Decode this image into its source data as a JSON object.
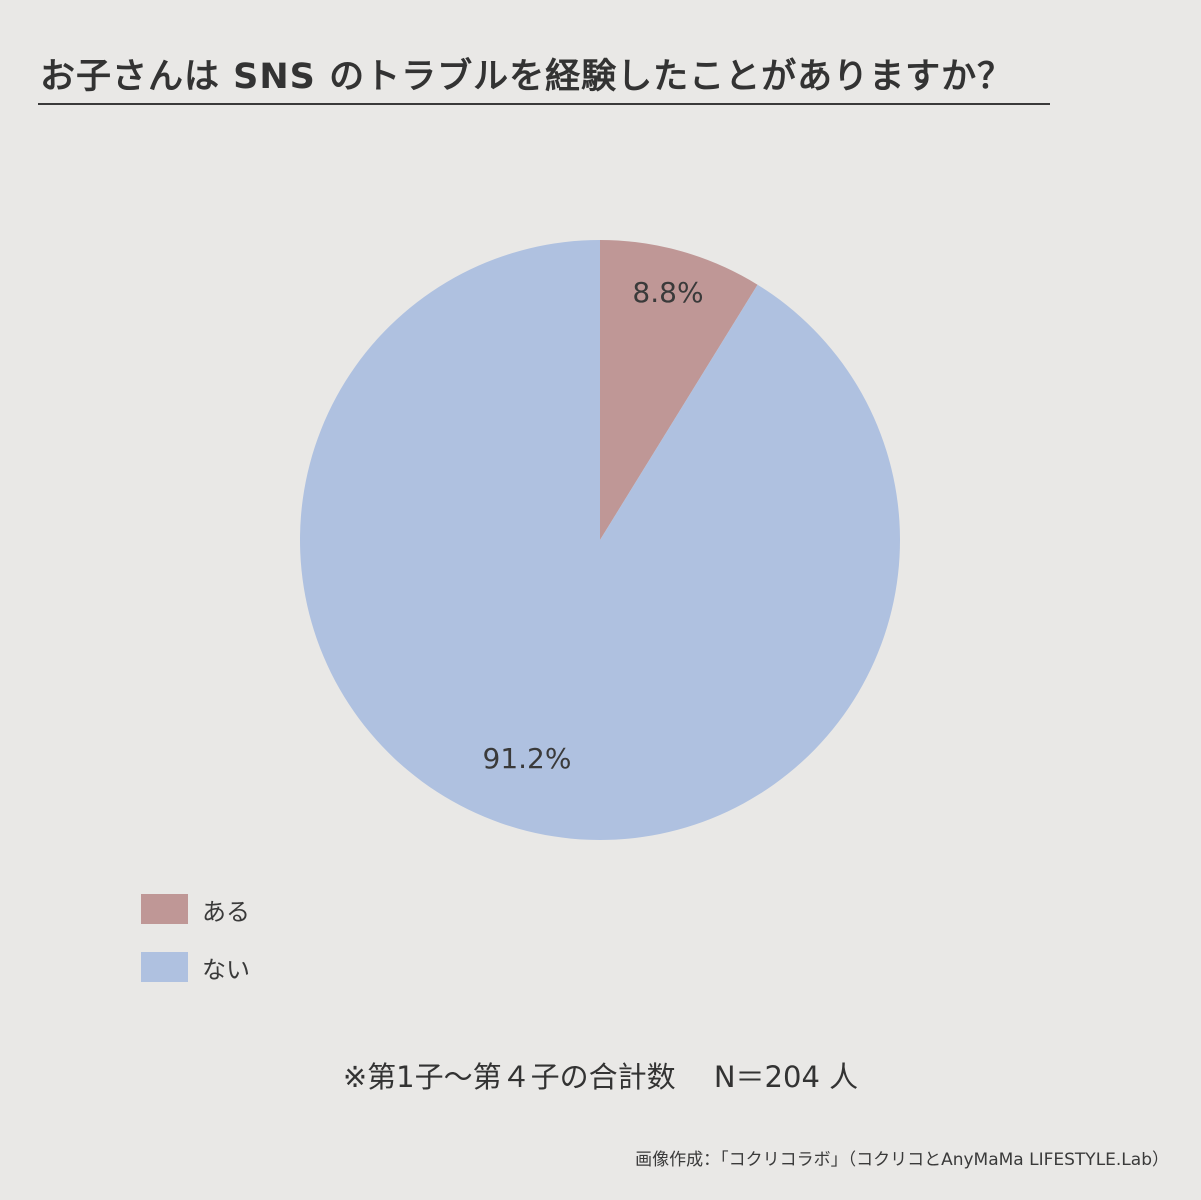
{
  "chart_data": {
    "type": "pie",
    "title": "お子さんは SNS のトラブルを経験したことがありますか？",
    "categories": [
      "ある",
      "ない"
    ],
    "values": [
      8.8,
      91.2
    ],
    "labels": [
      "8.8%",
      "91.2%"
    ],
    "colors": [
      "#bf9796",
      "#afc1e0"
    ],
    "legend": "bottom-left",
    "note": "※第1子～第４子の合計数　 N＝204 人"
  },
  "credit": "画像作成：「コクリコラボ」（コクリコとAnyMaMa LIFESTYLE.Lab）"
}
